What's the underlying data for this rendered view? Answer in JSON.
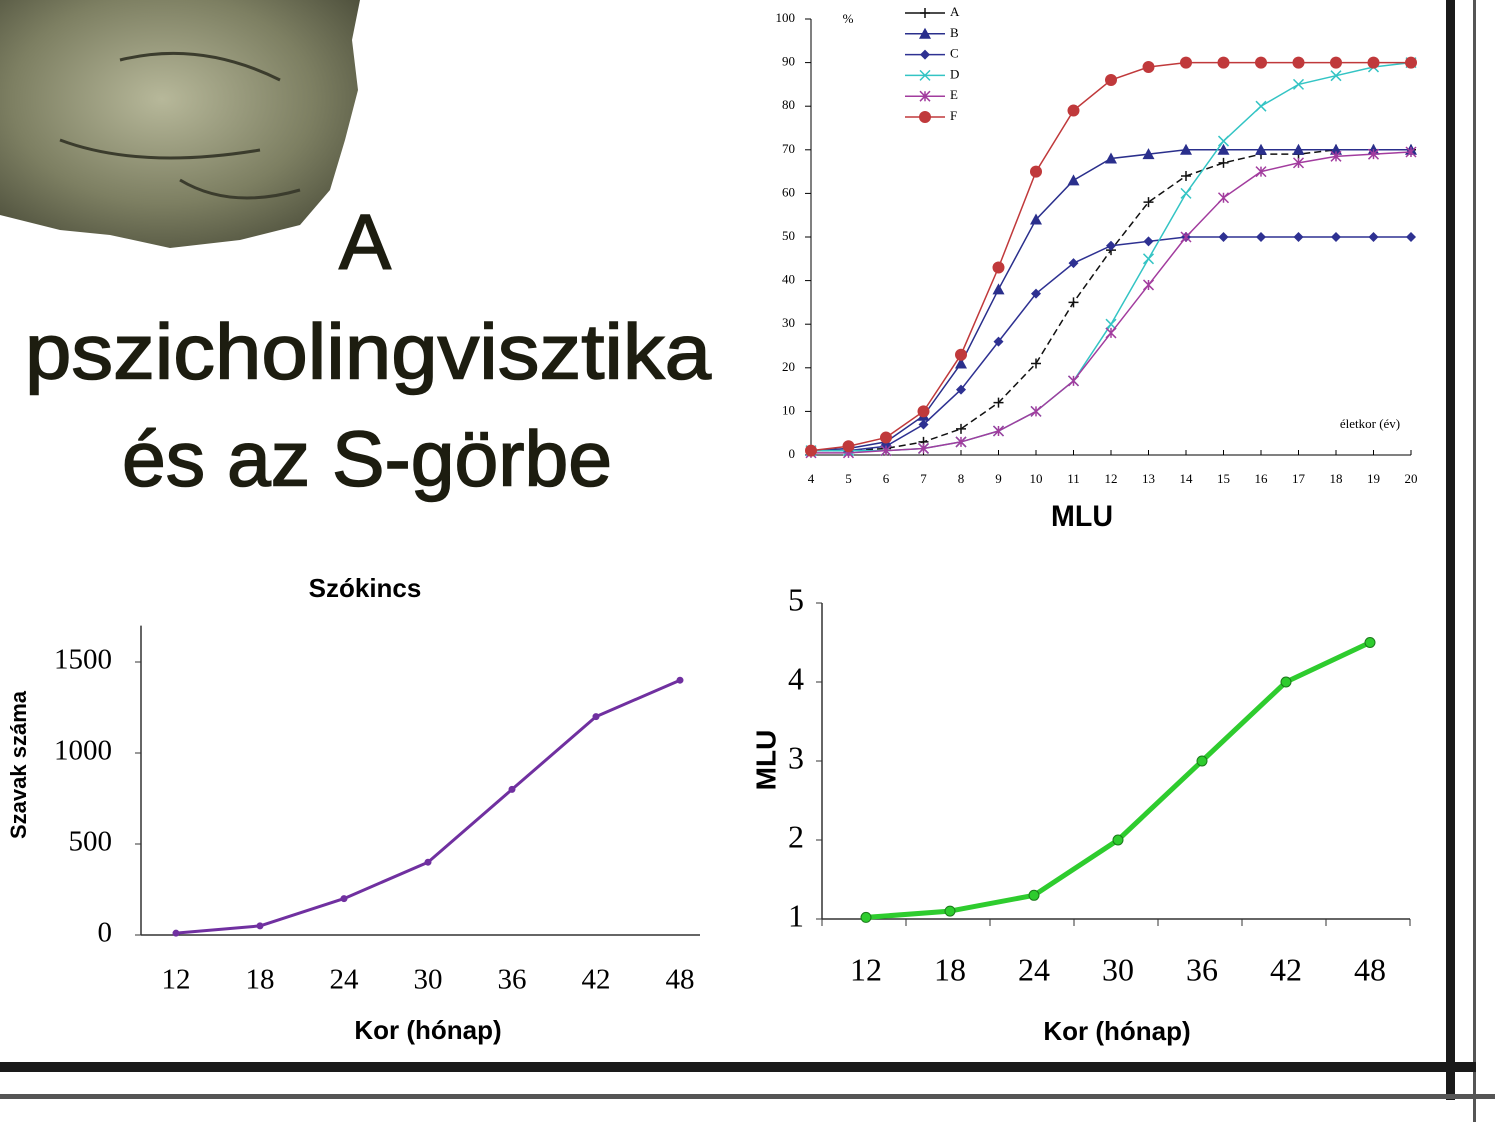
{
  "slide_title": [
    "A",
    "pszicholingvisztika",
    "és az S-görbe"
  ],
  "chart_data": [
    {
      "type": "line",
      "y_unit": "%",
      "annotation": "életkor (év)",
      "xlabel": "MLU",
      "x": [
        4,
        5,
        6,
        7,
        8,
        9,
        10,
        11,
        12,
        13,
        14,
        15,
        16,
        17,
        18,
        19,
        20
      ],
      "xlim": [
        4,
        20
      ],
      "xticks": [
        4,
        5,
        6,
        7,
        8,
        9,
        10,
        11,
        12,
        13,
        14,
        15,
        16,
        17,
        18,
        19,
        20
      ],
      "ylim": [
        0,
        100
      ],
      "yticks": [
        0,
        10,
        20,
        30,
        40,
        50,
        60,
        70,
        80,
        90,
        100
      ],
      "legend": "top-left",
      "series": [
        {
          "name": "A",
          "color": "#111111",
          "marker": "plus",
          "line_style": "dashed",
          "values": [
            1,
            1,
            1.5,
            3,
            6,
            12,
            21,
            35,
            47,
            58,
            64,
            67,
            69,
            69,
            70,
            70,
            70
          ]
        },
        {
          "name": "B",
          "color": "#2a2f8c",
          "marker": "triangle",
          "line_style": "solid",
          "values": [
            1,
            1.5,
            3,
            9,
            21,
            38,
            54,
            63,
            68,
            69,
            70,
            70,
            70,
            70,
            70,
            70,
            70
          ]
        },
        {
          "name": "C",
          "color": "#2e3192",
          "marker": "diamond",
          "line_style": "solid",
          "values": [
            1,
            1,
            2,
            7,
            15,
            26,
            37,
            44,
            48,
            49,
            50,
            50,
            50,
            50,
            50,
            50,
            50
          ]
        },
        {
          "name": "D",
          "color": "#33c4c4",
          "marker": "x",
          "line_style": "solid",
          "values": [
            1,
            1,
            1,
            1.5,
            3,
            5.5,
            10,
            17,
            30,
            45,
            60,
            72,
            80,
            85,
            87,
            89,
            90
          ]
        },
        {
          "name": "E",
          "color": "#a23c9e",
          "marker": "star",
          "line_style": "solid",
          "values": [
            0.5,
            0.5,
            1,
            1.5,
            3,
            5.5,
            10,
            17,
            28,
            39,
            50,
            59,
            65,
            67,
            68.5,
            69,
            69.5
          ]
        },
        {
          "name": "F",
          "color": "#c0393b",
          "marker": "circle",
          "line_style": "solid",
          "values": [
            1,
            2,
            4,
            10,
            23,
            43,
            65,
            79,
            86,
            89,
            90,
            90,
            90,
            90,
            90,
            90,
            90
          ]
        }
      ]
    },
    {
      "type": "line",
      "title": "Szókincs",
      "xlabel": "Kor (hónap)",
      "ylabel": "Szavak száma",
      "categories": [
        "12",
        "18",
        "24",
        "30",
        "36",
        "42",
        "48"
      ],
      "values": [
        10,
        50,
        200,
        400,
        800,
        1200,
        1400
      ],
      "color": "#7030a0",
      "ylim": [
        0,
        1700
      ],
      "yticks": [
        0,
        500,
        1000,
        1500
      ]
    },
    {
      "type": "line",
      "xlabel": "Kor (hónap)",
      "ylabel": "MLU",
      "categories": [
        "12",
        "18",
        "24",
        "30",
        "36",
        "42",
        "48"
      ],
      "values": [
        1.02,
        1.1,
        1.3,
        2,
        3,
        4,
        4.5
      ],
      "color": "#2ecc2e",
      "ylim": [
        1,
        5
      ],
      "yticks": [
        1,
        2,
        3,
        4,
        5
      ]
    }
  ]
}
